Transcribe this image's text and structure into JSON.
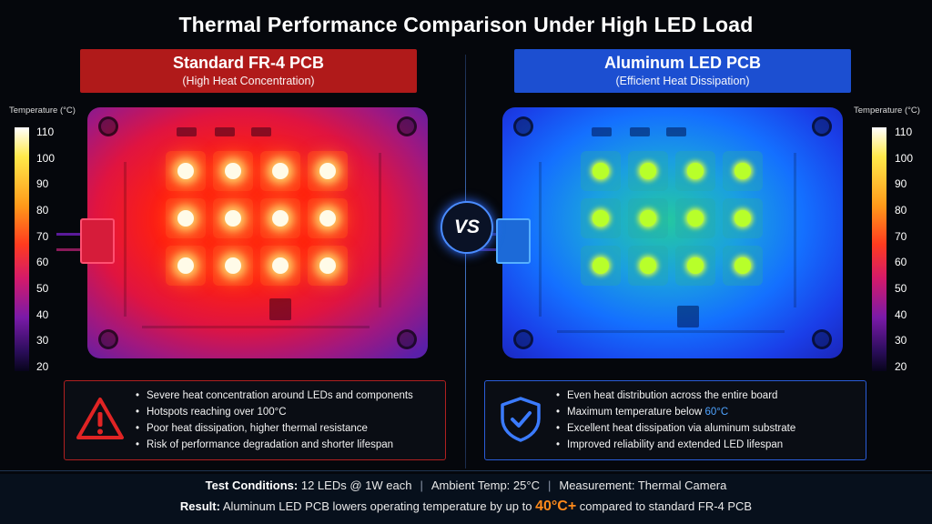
{
  "title": "Thermal Performance Comparison Under High LED Load",
  "left_panel": {
    "heading": "Standard FR-4 PCB",
    "subheading": "(High Heat Concentration)",
    "bullets": [
      "Severe heat concentration around LEDs and components",
      "Hotspots reaching over 100°C",
      "Poor heat dissipation, higher thermal resistance",
      "Risk of performance degradation and shorter lifespan"
    ],
    "icon": "warning-triangle-icon",
    "accent": "#b01a1a"
  },
  "right_panel": {
    "heading": "Aluminum LED PCB",
    "subheading": "(Efficient Heat Dissipation)",
    "bullets": [
      "Even heat distribution across the entire board",
      "Excellent heat dissipation via aluminum substrate",
      "Improved reliability and extended LED lifespan"
    ],
    "bullet_max_prefix": "Maximum temperature below ",
    "bullet_max_value": "60°C",
    "icon": "shield-check-icon",
    "accent": "#1c4fd1"
  },
  "vs_label": "VS",
  "temperature_scale": {
    "label": "Temperature (°C)",
    "ticks": [
      "110",
      "100",
      "90",
      "80",
      "70",
      "60",
      "50",
      "40",
      "30",
      "20"
    ]
  },
  "footer": {
    "conditions_label": "Test Conditions:",
    "conditions": [
      "12 LEDs @ 1W each",
      "Ambient Temp: 25°C",
      "Measurement: Thermal Camera"
    ],
    "result_label": "Result:",
    "result_prefix": "Aluminum LED PCB lowers operating temperature by up to",
    "result_value": "40°C+",
    "result_suffix": "compared to standard FR-4 PCB"
  },
  "colors": {
    "hot": "#ff2010",
    "cool": "#1470ff",
    "highlight_orange": "#ff8a1a",
    "highlight_blue": "#4fa3ff"
  }
}
